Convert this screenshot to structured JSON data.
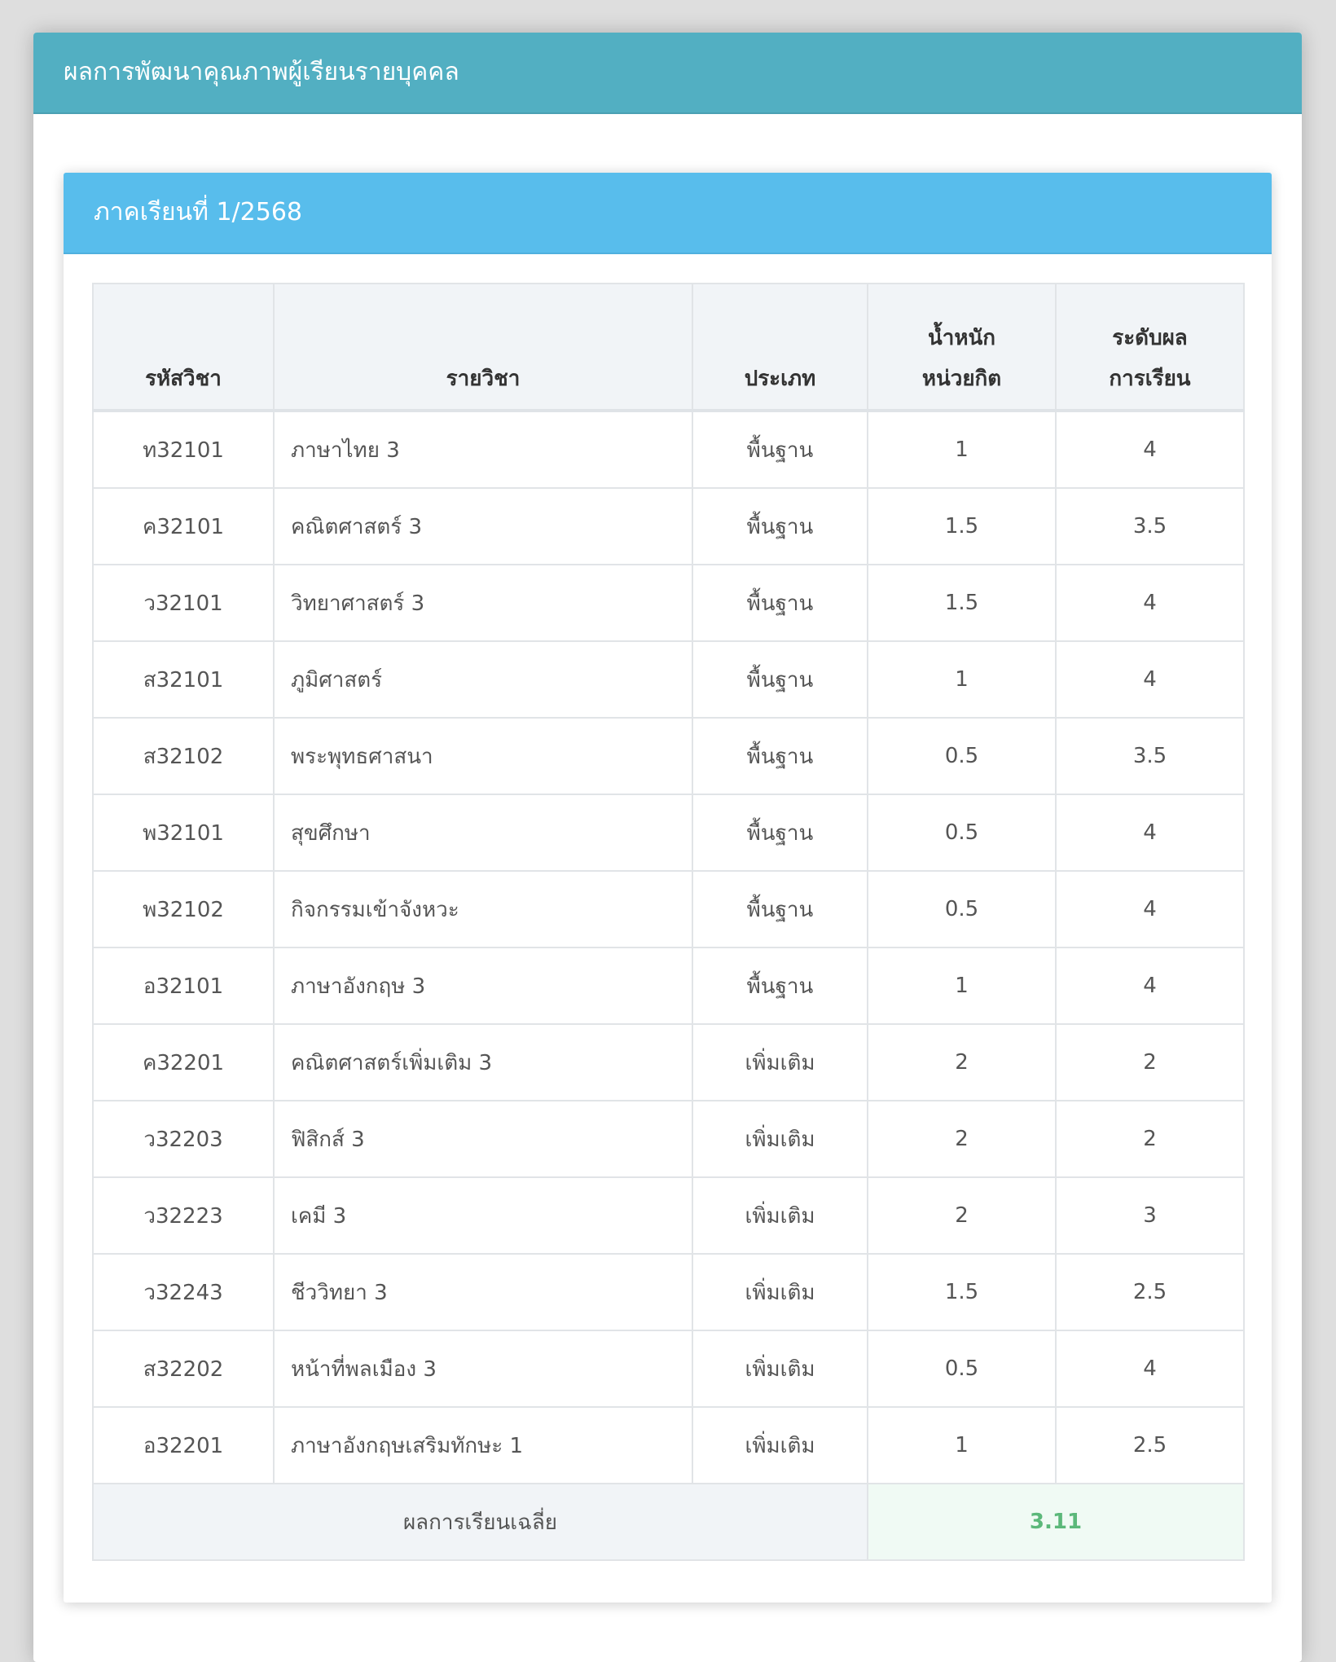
{
  "panel": {
    "title": "ผลการพัฒนาคุณภาพผู้เรียนรายบุคคล"
  },
  "semester": {
    "title": "ภาคเรียนที่ 1/2568"
  },
  "table": {
    "headers": {
      "code": "รหัสวิชา",
      "subject": "รายวิชา",
      "type": "ประเภท",
      "credit_line1": "น้ำหนัก",
      "credit_line2": "หน่วยกิต",
      "grade_line1": "ระดับผล",
      "grade_line2": "การเรียน"
    },
    "rows": [
      {
        "code": "ท32101",
        "subject": "ภาษาไทย 3",
        "type": "พื้นฐาน",
        "credit": "1",
        "grade": "4"
      },
      {
        "code": "ค32101",
        "subject": "คณิตศาสตร์ 3",
        "type": "พื้นฐาน",
        "credit": "1.5",
        "grade": "3.5"
      },
      {
        "code": "ว32101",
        "subject": "วิทยาศาสตร์ 3",
        "type": "พื้นฐาน",
        "credit": "1.5",
        "grade": "4"
      },
      {
        "code": "ส32101",
        "subject": "ภูมิศาสตร์",
        "type": "พื้นฐาน",
        "credit": "1",
        "grade": "4"
      },
      {
        "code": "ส32102",
        "subject": "พระพุทธศาสนา",
        "type": "พื้นฐาน",
        "credit": "0.5",
        "grade": "3.5"
      },
      {
        "code": "พ32101",
        "subject": "สุขศึกษา",
        "type": "พื้นฐาน",
        "credit": "0.5",
        "grade": "4"
      },
      {
        "code": "พ32102",
        "subject": "กิจกรรมเข้าจังหวะ",
        "type": "พื้นฐาน",
        "credit": "0.5",
        "grade": "4"
      },
      {
        "code": "อ32101",
        "subject": "ภาษาอังกฤษ 3",
        "type": "พื้นฐาน",
        "credit": "1",
        "grade": "4"
      },
      {
        "code": "ค32201",
        "subject": "คณิตศาสตร์เพิ่มเติม 3",
        "type": "เพิ่มเติม",
        "credit": "2",
        "grade": "2"
      },
      {
        "code": "ว32203",
        "subject": "ฟิสิกส์ 3",
        "type": "เพิ่มเติม",
        "credit": "2",
        "grade": "2"
      },
      {
        "code": "ว32223",
        "subject": "เคมี 3",
        "type": "เพิ่มเติม",
        "credit": "2",
        "grade": "3"
      },
      {
        "code": "ว32243",
        "subject": "ชีววิทยา 3",
        "type": "เพิ่มเติม",
        "credit": "1.5",
        "grade": "2.5"
      },
      {
        "code": "ส32202",
        "subject": "หน้าที่พลเมือง 3",
        "type": "เพิ่มเติม",
        "credit": "0.5",
        "grade": "4"
      },
      {
        "code": "อ32201",
        "subject": "ภาษาอังกฤษเสริมทักษะ 1",
        "type": "เพิ่มเติม",
        "credit": "1",
        "grade": "2.5"
      }
    ],
    "footer": {
      "label": "ผลการเรียนเฉลี่ย",
      "gpa": "3.11"
    }
  }
}
